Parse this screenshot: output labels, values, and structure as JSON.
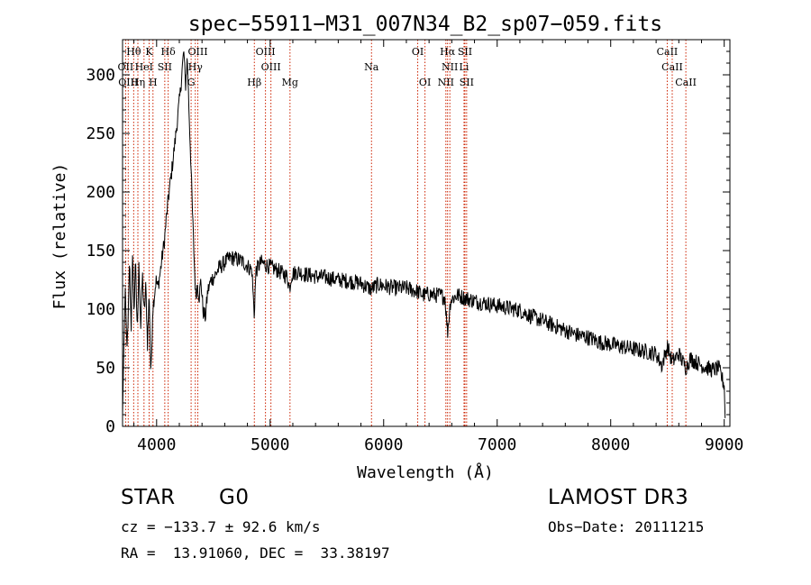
{
  "chart_data": {
    "type": "line",
    "title": "spec−55911−M31_007N34_B2_sp07−059.fits",
    "xlabel": "Wavelength (Å)",
    "ylabel": "Flux (relative)",
    "xlim": [
      3700,
      9050
    ],
    "ylim": [
      0,
      330
    ],
    "xticks": [
      4000,
      5000,
      6000,
      7000,
      8000,
      9000
    ],
    "yticks": [
      0,
      50,
      100,
      150,
      200,
      250,
      300
    ],
    "grid": false,
    "series": [
      {
        "name": "spectrum",
        "anchors": [
          [
            3700,
            10
          ],
          [
            3712,
            70
          ],
          [
            3725,
            120
          ],
          [
            3738,
            60
          ],
          [
            3750,
            95
          ],
          [
            3762,
            140
          ],
          [
            3775,
            80
          ],
          [
            3788,
            150
          ],
          [
            3800,
            95
          ],
          [
            3815,
            145
          ],
          [
            3830,
            75
          ],
          [
            3845,
            140
          ],
          [
            3860,
            85
          ],
          [
            3875,
            130
          ],
          [
            3890,
            95
          ],
          [
            3905,
            120
          ],
          [
            3920,
            70
          ],
          [
            3935,
            115
          ],
          [
            3950,
            40
          ],
          [
            3965,
            100
          ],
          [
            3980,
            112
          ],
          [
            3995,
            125
          ],
          [
            4010,
            118
          ],
          [
            4030,
            130
          ],
          [
            4050,
            145
          ],
          [
            4070,
            160
          ],
          [
            4090,
            182
          ],
          [
            4110,
            200
          ],
          [
            4130,
            215
          ],
          [
            4150,
            232
          ],
          [
            4170,
            250
          ],
          [
            4190,
            268
          ],
          [
            4210,
            286
          ],
          [
            4225,
            305
          ],
          [
            4240,
            320
          ],
          [
            4255,
            290
          ],
          [
            4270,
            315
          ],
          [
            4285,
            270
          ],
          [
            4300,
            230
          ],
          [
            4315,
            185
          ],
          [
            4330,
            145
          ],
          [
            4345,
            110
          ],
          [
            4360,
            122
          ],
          [
            4375,
            110
          ],
          [
            4390,
            125
          ],
          [
            4410,
            98
          ],
          [
            4430,
            93
          ],
          [
            4450,
            115
          ],
          [
            4480,
            125
          ],
          [
            4510,
            128
          ],
          [
            4550,
            135
          ],
          [
            4600,
            140
          ],
          [
            4650,
            144
          ],
          [
            4700,
            143
          ],
          [
            4750,
            141
          ],
          [
            4800,
            137
          ],
          [
            4840,
            133
          ],
          [
            4860,
            95
          ],
          [
            4875,
            133
          ],
          [
            4920,
            140
          ],
          [
            4960,
            138
          ],
          [
            5000,
            136
          ],
          [
            5050,
            134
          ],
          [
            5100,
            131
          ],
          [
            5150,
            128
          ],
          [
            5172,
            118
          ],
          [
            5190,
            130
          ],
          [
            5250,
            132
          ],
          [
            5300,
            130
          ],
          [
            5400,
            128
          ],
          [
            5500,
            127
          ],
          [
            5600,
            125
          ],
          [
            5700,
            124
          ],
          [
            5800,
            122
          ],
          [
            5890,
            117
          ],
          [
            5950,
            121
          ],
          [
            6000,
            120
          ],
          [
            6100,
            118
          ],
          [
            6200,
            118
          ],
          [
            6300,
            115
          ],
          [
            6350,
            112
          ],
          [
            6400,
            113
          ],
          [
            6450,
            112
          ],
          [
            6500,
            112
          ],
          [
            6540,
            110
          ],
          [
            6563,
            80
          ],
          [
            6590,
            108
          ],
          [
            6650,
            112
          ],
          [
            6700,
            110
          ],
          [
            6800,
            107
          ],
          [
            6900,
            105
          ],
          [
            7000,
            103
          ],
          [
            7100,
            101
          ],
          [
            7200,
            99
          ],
          [
            7300,
            94
          ],
          [
            7400,
            90
          ],
          [
            7500,
            86
          ],
          [
            7600,
            82
          ],
          [
            7700,
            78
          ],
          [
            7800,
            76
          ],
          [
            7900,
            72
          ],
          [
            8000,
            70
          ],
          [
            8100,
            68
          ],
          [
            8200,
            66
          ],
          [
            8300,
            64
          ],
          [
            8400,
            62
          ],
          [
            8450,
            52
          ],
          [
            8500,
            68
          ],
          [
            8542,
            55
          ],
          [
            8600,
            62
          ],
          [
            8662,
            50
          ],
          [
            8700,
            58
          ],
          [
            8800,
            52
          ],
          [
            8900,
            48
          ],
          [
            8950,
            50
          ],
          [
            9000,
            35
          ],
          [
            9010,
            0
          ]
        ],
        "noise": 7
      }
    ],
    "line_labels": [
      {
        "label": "Hθ",
        "wave": 3798,
        "row": 0
      },
      {
        "label": "K",
        "wave": 3934,
        "row": 0
      },
      {
        "label": "Hδ",
        "wave": 4102,
        "row": 0
      },
      {
        "label": "OIII",
        "wave": 4363,
        "row": 0
      },
      {
        "label": "OIII",
        "wave": 4959,
        "row": 0
      },
      {
        "label": "OI",
        "wave": 6300,
        "row": 0
      },
      {
        "label": "Hα",
        "wave": 6563,
        "row": 0
      },
      {
        "label": "SII",
        "wave": 6716,
        "row": 0
      },
      {
        "label": "CaII",
        "wave": 8498,
        "row": 0
      },
      {
        "label": "OII",
        "wave": 3727,
        "row": 1
      },
      {
        "label": "HeI",
        "wave": 3889,
        "row": 1
      },
      {
        "label": "SII",
        "wave": 4072,
        "row": 1
      },
      {
        "label": "Hγ",
        "wave": 4341,
        "row": 1
      },
      {
        "label": "OIII",
        "wave": 5007,
        "row": 1
      },
      {
        "label": "Na",
        "wave": 5893,
        "row": 1
      },
      {
        "label": "NII",
        "wave": 6583,
        "row": 1
      },
      {
        "label": "Li",
        "wave": 6708,
        "row": 1
      },
      {
        "label": "CaII",
        "wave": 8542,
        "row": 1
      },
      {
        "label": "OIII",
        "wave": 3750,
        "row": 2
      },
      {
        "label": "Hη",
        "wave": 3835,
        "row": 2
      },
      {
        "label": "H",
        "wave": 3968,
        "row": 2
      },
      {
        "label": "G",
        "wave": 4304,
        "row": 2
      },
      {
        "label": "Hβ",
        "wave": 4861,
        "row": 2
      },
      {
        "label": "Mg",
        "wave": 5175,
        "row": 2
      },
      {
        "label": "OI",
        "wave": 6364,
        "row": 2
      },
      {
        "label": "NII",
        "wave": 6548,
        "row": 2
      },
      {
        "label": "SII",
        "wave": 6731,
        "row": 2
      },
      {
        "label": "CaII",
        "wave": 8662,
        "row": 2
      }
    ]
  },
  "info": {
    "class": "STAR",
    "subclass": "G0",
    "survey": "LAMOST DR3",
    "cz": "cz = −133.7 ± 92.6 km/s",
    "obs_date": "Obs−Date: 20111215",
    "radec": "RA =  13.91060, DEC =  33.38197"
  }
}
